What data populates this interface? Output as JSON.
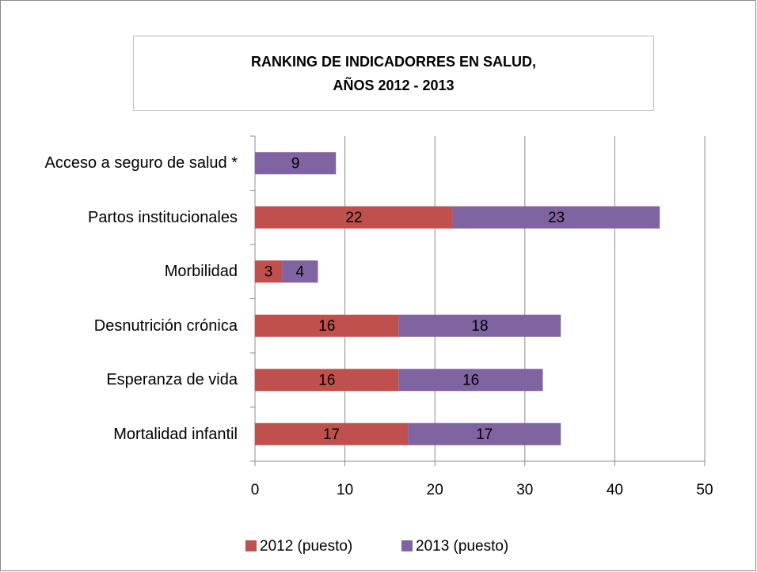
{
  "chart_data": {
    "type": "stacked_barh",
    "title": "RANKING DE INDICADORRES EN SALUD,\nAÑOS 2012 - 2013",
    "categories": [
      "Acceso a seguro de salud *",
      "Partos institucionales",
      "Morbilidad",
      "Desnutrición crónica",
      "Esperanza de vida",
      "Mortalidad infantil"
    ],
    "series": [
      {
        "name": "2012 (puesto)",
        "color": "#c0504d",
        "values": [
          null,
          22,
          3,
          16,
          16,
          17
        ]
      },
      {
        "name": "2013 (puesto)",
        "color": "#8064a2",
        "values": [
          9,
          23,
          4,
          18,
          16,
          17
        ]
      }
    ],
    "xlim": [
      0,
      50
    ],
    "xticks": [
      0,
      10,
      20,
      30,
      40,
      50
    ],
    "grid": true,
    "legend": "bottom"
  }
}
